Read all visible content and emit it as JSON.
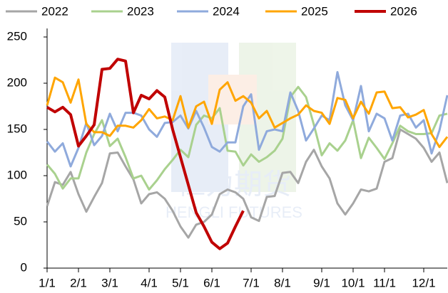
{
  "chart_data": {
    "type": "line",
    "watermark": [
      "恒力期货",
      "HENGLI FUTURES"
    ],
    "categories": [
      "1/1",
      null,
      null,
      null,
      "2/1",
      null,
      null,
      null,
      "3/1",
      null,
      null,
      null,
      null,
      "4/1",
      null,
      null,
      null,
      "5/1",
      null,
      null,
      null,
      "6/1",
      null,
      null,
      null,
      null,
      "7/1",
      null,
      null,
      null,
      "8/1",
      null,
      null,
      null,
      null,
      "9/1",
      null,
      null,
      null,
      "10/1",
      null,
      null,
      null,
      "11/1",
      null,
      null,
      null,
      null,
      "12/1",
      null,
      null,
      null
    ],
    "ylim": [
      0,
      250
    ],
    "yticks": [
      0,
      50,
      100,
      150,
      200,
      250
    ],
    "grid": false,
    "legend": "top",
    "series": [
      {
        "name": "2022",
        "color": "#a6a6a6",
        "width": 3,
        "values": [
          67,
          93,
          90,
          104,
          80,
          61,
          77,
          92,
          124,
          125,
          110,
          96,
          70,
          80,
          82,
          75,
          62,
          45,
          33,
          47,
          50,
          58,
          80,
          85,
          82,
          75,
          55,
          51,
          77,
          78,
          103,
          104,
          92,
          115,
          128,
          110,
          97,
          70,
          58,
          70,
          85,
          83,
          86,
          115,
          119,
          150,
          145,
          140,
          130,
          115,
          125,
          92
        ]
      },
      {
        "name": "2023",
        "color": "#a9d18e",
        "width": 3,
        "values": [
          112,
          102,
          86,
          97,
          97,
          125,
          145,
          160,
          132,
          140,
          120,
          97,
          100,
          85,
          95,
          107,
          117,
          128,
          120,
          155,
          165,
          162,
          173,
          127,
          126,
          111,
          123,
          115,
          120,
          127,
          140,
          185,
          196,
          185,
          155,
          122,
          135,
          127,
          138,
          160,
          119,
          141,
          130,
          118,
          135,
          154,
          148,
          145,
          145,
          146,
          165,
          167
        ]
      },
      {
        "name": "2024",
        "color": "#8faadc",
        "width": 3,
        "values": [
          137,
          126,
          135,
          110,
          130,
          157,
          133,
          143,
          167,
          148,
          168,
          168,
          165,
          150,
          142,
          157,
          158,
          165,
          151,
          170,
          152,
          131,
          126,
          136,
          136,
          175,
          188,
          128,
          148,
          150,
          148,
          190,
          170,
          138,
          151,
          165,
          160,
          212,
          176,
          160,
          197,
          148,
          167,
          162,
          138,
          165,
          167,
          152,
          160,
          124,
          149,
          187
        ]
      },
      {
        "name": "2025",
        "color": "#ffa500",
        "width": 3,
        "values": [
          176,
          206,
          201,
          179,
          204,
          156,
          147,
          147,
          143,
          154,
          154,
          152,
          160,
          172,
          162,
          164,
          160,
          186,
          152,
          175,
          180,
          156,
          193,
          201,
          181,
          186,
          179,
          162,
          170,
          152,
          157,
          162,
          166,
          176,
          170,
          168,
          156,
          184,
          182,
          162,
          180,
          167,
          190,
          191,
          173,
          174,
          163,
          166,
          171,
          145,
          131,
          142
        ]
      },
      {
        "name": "2026",
        "color": "#c00000",
        "width": 4,
        "values": [
          174,
          169,
          174,
          166,
          132,
          143,
          155,
          215,
          216,
          226,
          224,
          168,
          187,
          183,
          192,
          185,
          150,
          120,
          90,
          60,
          45,
          28,
          21,
          27,
          45,
          62,
          null,
          null,
          null,
          null,
          null,
          null,
          null,
          null,
          null,
          null,
          null,
          null,
          null,
          null,
          null,
          null,
          null,
          null,
          null,
          null,
          null,
          null,
          null,
          null,
          null,
          null
        ]
      }
    ]
  }
}
